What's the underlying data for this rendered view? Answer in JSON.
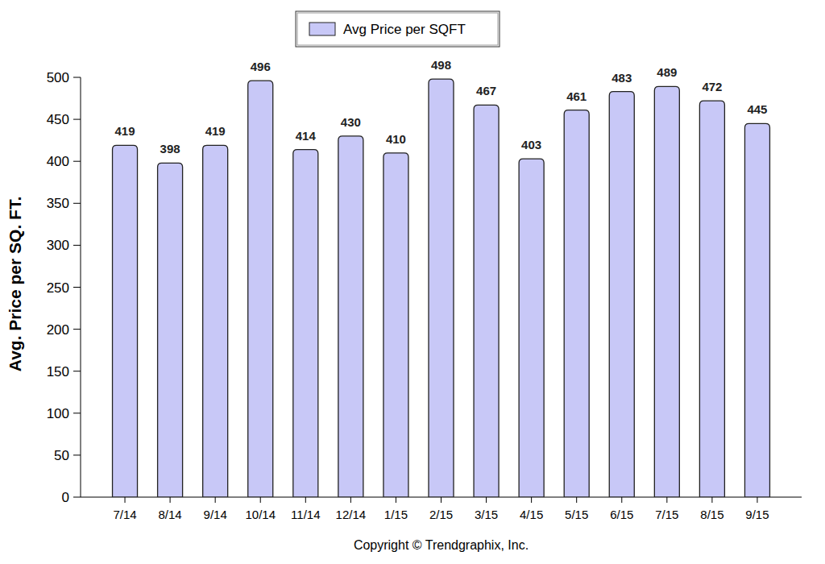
{
  "chart_data": {
    "type": "bar",
    "y_label": "Avg. Price per SQ. FT.",
    "annotations": [
      "Copyright © Trendgraphix, Inc."
    ],
    "categories": [
      "7/14",
      "8/14",
      "9/14",
      "10/14",
      "11/14",
      "12/14",
      "1/15",
      "2/15",
      "3/15",
      "4/15",
      "5/15",
      "6/15",
      "7/15",
      "8/15",
      "9/15"
    ],
    "series": [
      {
        "name": "Avg Price per SQFT",
        "color": "#c8c8f7",
        "values": [
          419,
          398,
          419,
          496,
          414,
          430,
          410,
          498,
          467,
          403,
          461,
          483,
          489,
          472,
          445
        ]
      }
    ],
    "ylim": [
      0,
      500
    ],
    "yticks": [
      0,
      50,
      100,
      150,
      200,
      250,
      300,
      350,
      400,
      450,
      500
    ],
    "grid": false,
    "legend": "top",
    "data_labels": true
  }
}
